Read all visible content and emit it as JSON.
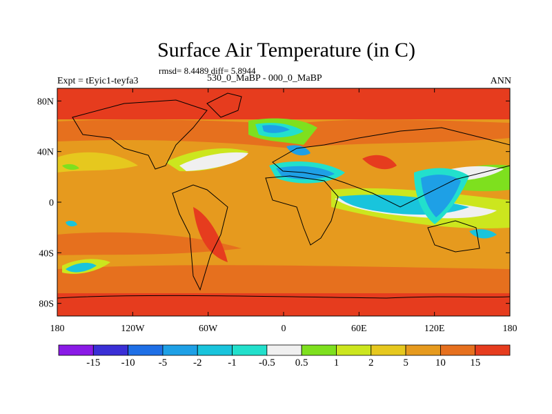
{
  "title": "Surface Air Temperature (in C)",
  "stats": "rmsd= 8.4489 diff= 5.8944",
  "experiment": "Expt = tEyic1-teyfa3",
  "case": "530_0_MaBP - 000_0_MaBP",
  "season": "ANN",
  "lat_ticks": [
    "80N",
    "40N",
    "0",
    "40S",
    "80S"
  ],
  "lon_ticks": [
    "180",
    "120W",
    "60W",
    "0",
    "60E",
    "120E",
    "180"
  ],
  "colorbar": {
    "labels": [
      "-15",
      "-10",
      "-5",
      "-2",
      "-1",
      "-0.5",
      "0.5",
      "1",
      "2",
      "5",
      "10",
      "15"
    ],
    "colors": [
      "#8a1ae6",
      "#3a2fd6",
      "#1e6fe6",
      "#1ea0e6",
      "#19c4dc",
      "#22e0cc",
      "#f0f0f0",
      "#7ee01e",
      "#cce61e",
      "#e6c81e",
      "#e69a1e",
      "#e6701e",
      "#e63c1e"
    ]
  },
  "chart_data": {
    "type": "heatmap",
    "title": "Surface Air Temperature (in C)",
    "xlabel": "",
    "ylabel": "",
    "xlim": [
      -180,
      180
    ],
    "ylim": [
      -90,
      90
    ],
    "contour_levels": [
      -15,
      -10,
      -5,
      -2,
      -1,
      -0.5,
      0.5,
      1,
      2,
      5,
      10,
      15
    ]
  }
}
